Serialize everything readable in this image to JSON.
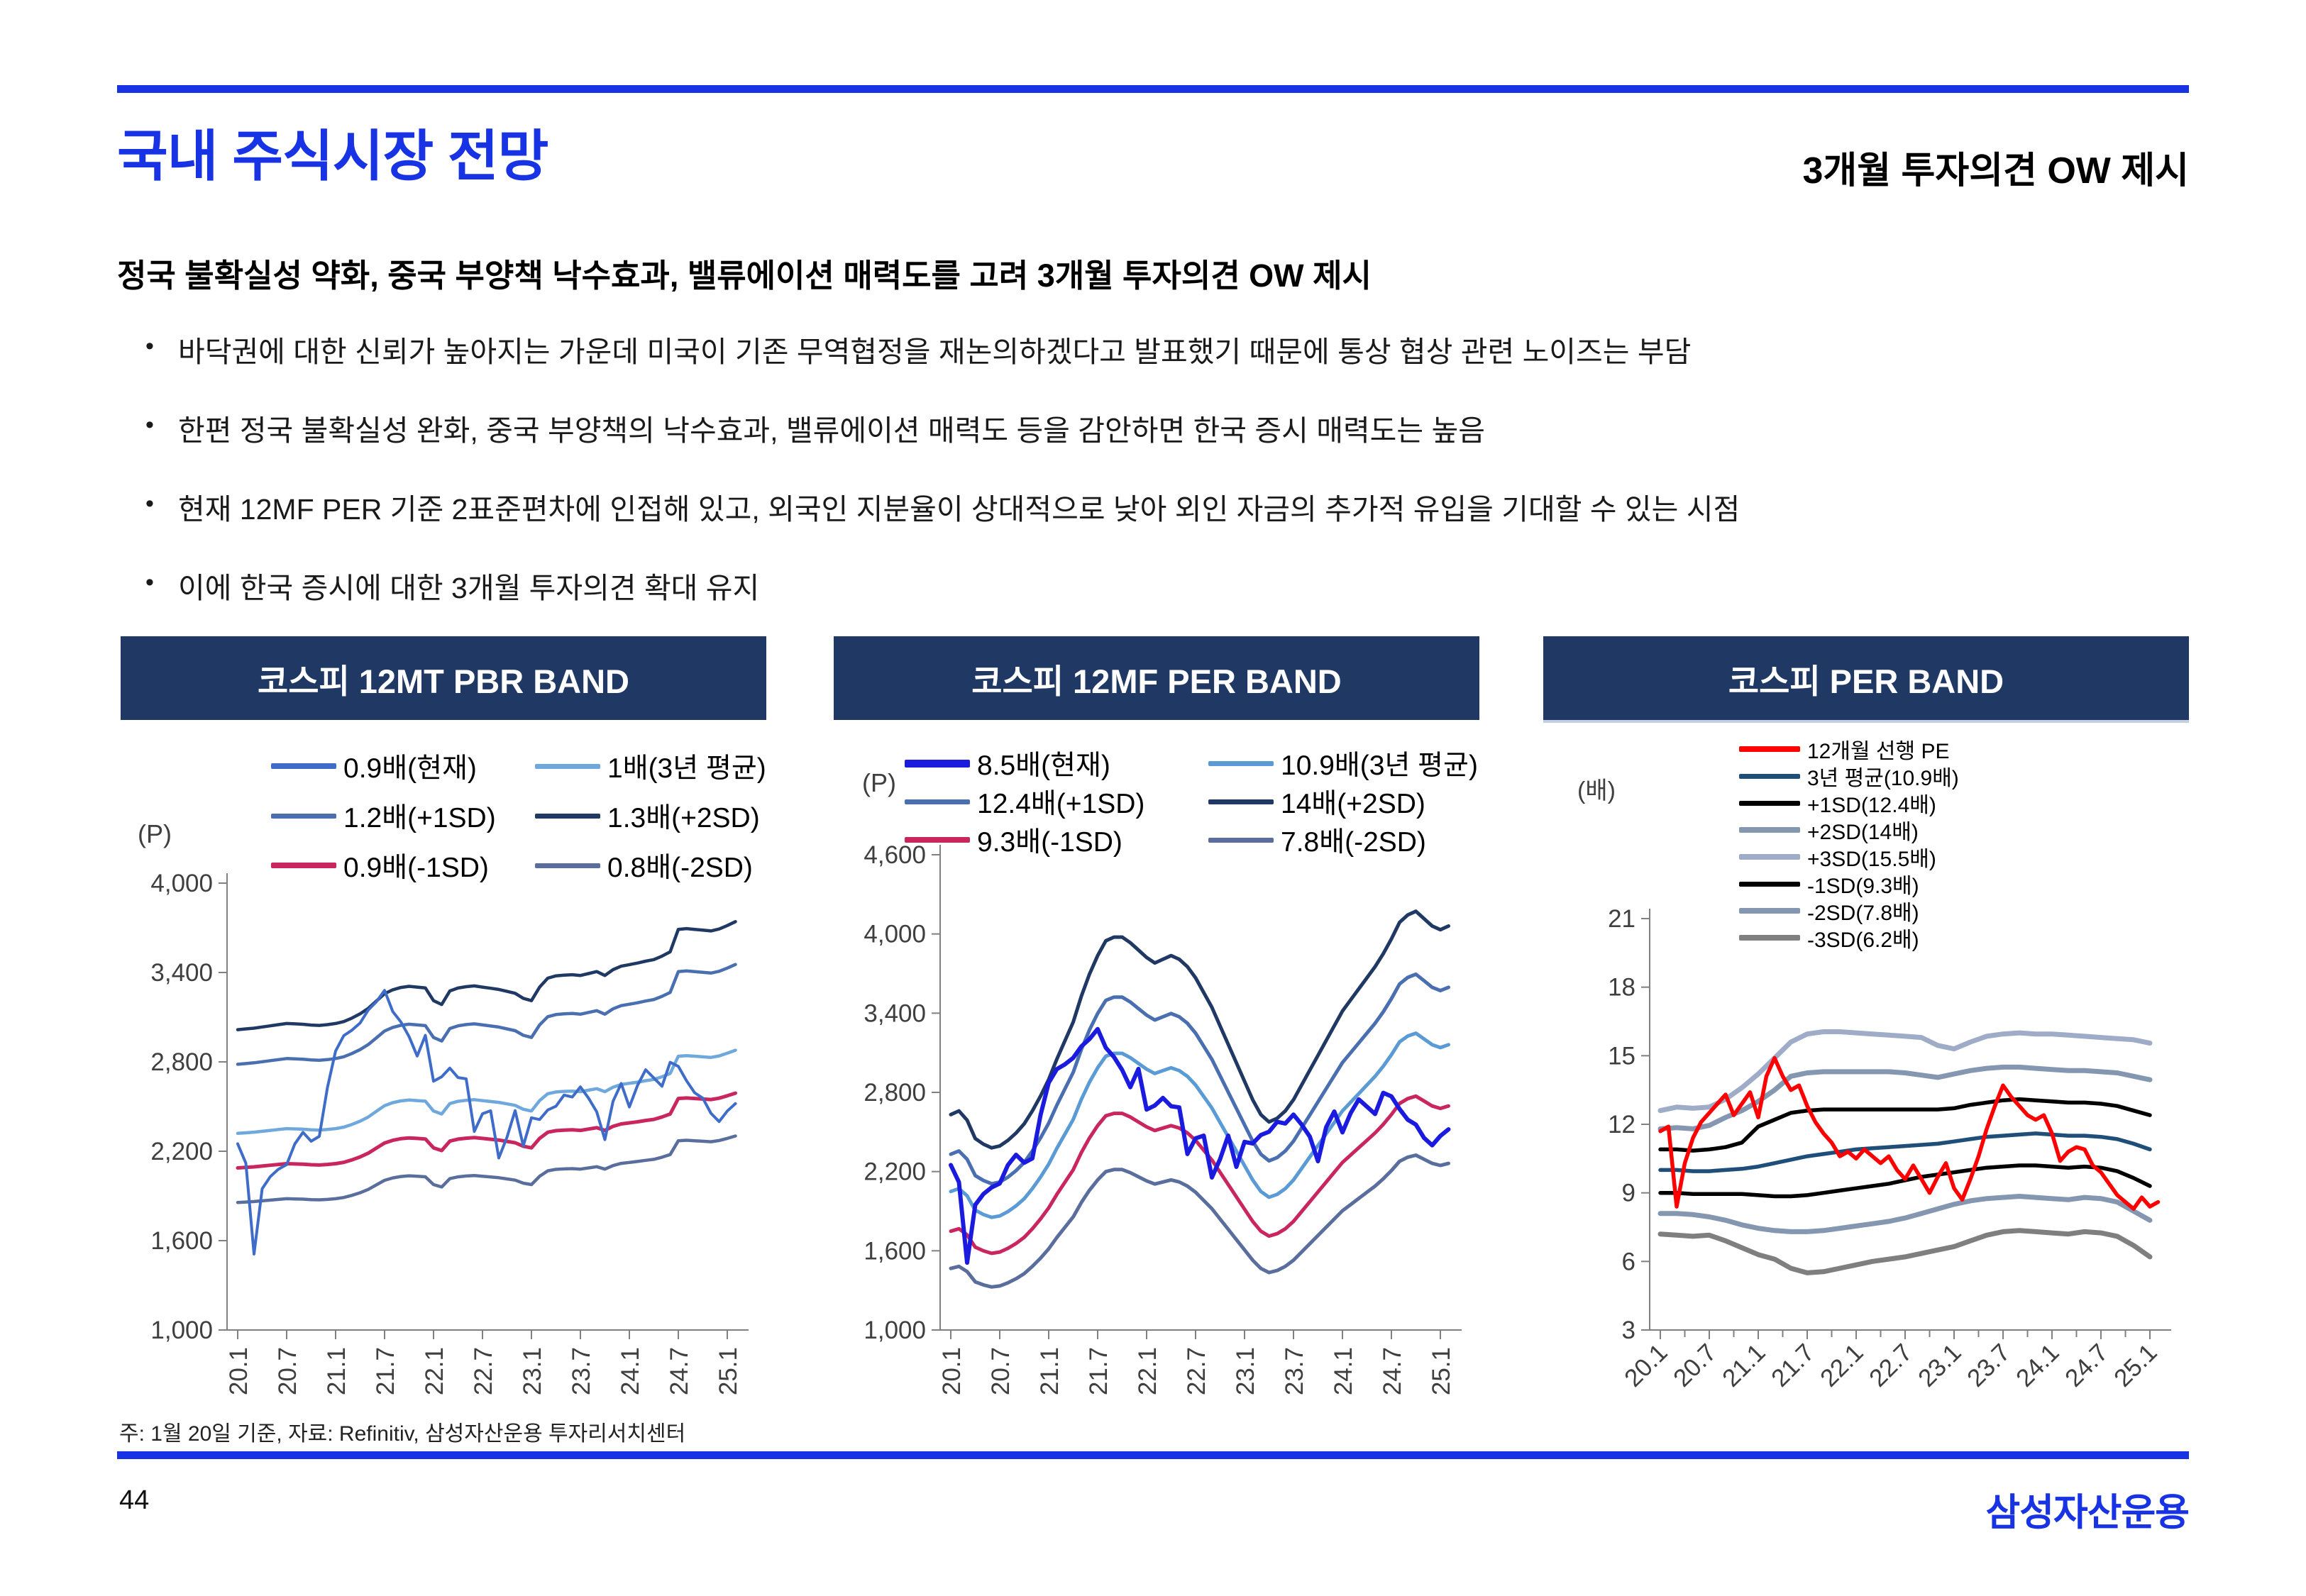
{
  "brand_color": "#1733E3",
  "header_bar_color": "#1F3864",
  "page": {
    "title": "국내 주식시장 전망",
    "header_right": "3개월 투자의견 OW 제시",
    "subtitle": "정국 불확실성 약화, 중국 부양책 낙수효과, 밸류에이션 매력도를 고려 3개월 투자의견 OW 제시",
    "bullet_marker": "•",
    "bullets": [
      "바닥권에 대한 신뢰가 높아지는 가운데 미국이 기존 무역협정을 재논의하겠다고 발표했기 때문에 통상 협상 관련 노이즈는 부담",
      "한편 정국 불확실성 완화, 중국 부양책의 낙수효과, 밸류에이션 매력도 등을 감안하면 한국 증시 매력도는 높음",
      "현재 12MF PER 기준 2표준편차에 인접해 있고, 외국인 지분율이 상대적으로 낮아 외인 자금의 추가적 유입을 기대할 수 있는 시점",
      "이에 한국 증시에 대한 3개월 투자의견 확대 유지"
    ],
    "footnote": "주: 1월 20일 기준, 자료: Refinitiv, 삼성자산운용 투자리서치센터",
    "page_number": "44",
    "logo": "삼성자산운용"
  },
  "chart_data": [
    {
      "type": "line",
      "title": "코스피 12MT PBR BAND",
      "unit": "(P)",
      "plot_top": 230,
      "ylim": [
        1000,
        4000
      ],
      "yticks": [
        4000,
        3400,
        2800,
        2200,
        1600,
        1000
      ],
      "ytick_labels": [
        "4,000",
        "3,400",
        "2,800",
        "2,200",
        "1,600",
        "1,000"
      ],
      "xtick_labels": [
        "20.1",
        "20.7",
        "21.1",
        "21.7",
        "22.1",
        "22.7",
        "23.1",
        "23.7",
        "24.1",
        "24.7",
        "25.1"
      ],
      "x_label_angle": -90,
      "legend": [
        {
          "label": "0.9배(현재)",
          "color": "#3E6CC8",
          "thick": 8
        },
        {
          "label": "1배(3년 평균)",
          "color": "#6FA8DC",
          "thick": 7
        },
        {
          "label": "1.2배(+1SD)",
          "color": "#4A6FB0",
          "thick": 7
        },
        {
          "label": "1.3배(+2SD)",
          "color": "#1F3864",
          "thick": 7
        },
        {
          "label": "0.9배(-1SD)",
          "color": "#C9255E",
          "thick": 8
        },
        {
          "label": "0.8배(-2SD)",
          "color": "#5A6E9E",
          "thick": 7
        }
      ],
      "base": [
        2320,
        2324,
        2328,
        2334,
        2340,
        2346,
        2352,
        2350,
        2348,
        2344,
        2342,
        2346,
        2352,
        2362,
        2380,
        2402,
        2430,
        2468,
        2506,
        2526,
        2538,
        2544,
        2540,
        2536,
        2470,
        2450,
        2520,
        2535,
        2542,
        2546,
        2540,
        2534,
        2528,
        2518,
        2508,
        2482,
        2470,
        2540,
        2586,
        2598,
        2602,
        2604,
        2600,
        2610,
        2620,
        2600,
        2630,
        2648,
        2656,
        2664,
        2674,
        2682,
        2700,
        2722,
        2838,
        2842,
        2838,
        2834,
        2830,
        2840,
        2858,
        2878
      ],
      "series": [
        {
          "name": "1.3배(+2SD)",
          "color": "#1F3864",
          "w": 4.5,
          "mult": 1.3
        },
        {
          "name": "1.2배(+1SD)",
          "color": "#4A6FB0",
          "w": 4.5,
          "mult": 1.2
        },
        {
          "name": "1배(3년 평균)",
          "color": "#6FA8DC",
          "w": 4.5,
          "mult": 1.0
        },
        {
          "name": "0.8배(-2SD)",
          "color": "#5A6E9E",
          "w": 4.5,
          "mult": 0.8
        },
        {
          "name": "0.9배(-1SD)",
          "color": "#C9255E",
          "w": 5,
          "mult": 0.9
        },
        {
          "name": "0.9배(현재)",
          "color": "#3E6CC8",
          "w": 4,
          "values": [
            2250,
            2120,
            1510,
            1948,
            2030,
            2080,
            2110,
            2249,
            2327,
            2267,
            2300,
            2628,
            2873,
            2976,
            3013,
            3061,
            3148,
            3204,
            3280,
            3138,
            3068,
            2970,
            2839,
            2978,
            2670,
            2700,
            2758,
            2695,
            2686,
            2333,
            2452,
            2472,
            2155,
            2294,
            2473,
            2236,
            2425,
            2413,
            2477,
            2502,
            2577,
            2564,
            2632,
            2556,
            2465,
            2278,
            2535,
            2655,
            2497,
            2642,
            2747,
            2692,
            2636,
            2797,
            2770,
            2674,
            2593,
            2556,
            2455,
            2399,
            2470,
            2520
          ]
        }
      ]
    },
    {
      "type": "line",
      "title": "코스피 12MF PER BAND",
      "unit": "(P)",
      "plot_top": 190,
      "ylim": [
        1000,
        4600
      ],
      "yticks": [
        4600,
        4000,
        3400,
        2800,
        2200,
        1600,
        1000
      ],
      "ytick_labels": [
        "4,600",
        "4,000",
        "3,400",
        "2,800",
        "2,200",
        "1,600",
        "1,000"
      ],
      "xtick_labels": [
        "20.1",
        "20.7",
        "21.1",
        "21.7",
        "22.1",
        "22.7",
        "23.1",
        "23.7",
        "24.1",
        "24.7",
        "25.1"
      ],
      "x_label_angle": -90,
      "legend": [
        {
          "label": "8.5배(현재)",
          "color": "#1B1BE0",
          "thick": 11
        },
        {
          "label": "10.9배(3년 평균)",
          "color": "#5B9BD5",
          "thick": 7
        },
        {
          "label": "12.4배(+1SD)",
          "color": "#4A6FB0",
          "thick": 7
        },
        {
          "label": "14배(+2SD)",
          "color": "#1F3864",
          "thick": 7
        },
        {
          "label": "9.3배(-1SD)",
          "color": "#C9255E",
          "thick": 8
        },
        {
          "label": "7.8배(-2SD)",
          "color": "#5A6E9E",
          "thick": 7
        }
      ],
      "base": [
        188,
        190,
        185,
        175,
        172,
        170,
        171,
        174,
        178,
        183,
        190,
        198,
        207,
        218,
        228,
        238,
        252,
        264,
        274,
        282,
        284,
        284,
        281,
        277,
        273,
        270,
        272,
        274,
        272,
        268,
        262,
        254,
        246,
        236,
        226,
        216,
        206,
        196,
        188,
        184,
        186,
        190,
        196,
        204,
        212,
        220,
        228,
        236,
        244,
        250,
        256,
        262,
        268,
        275,
        283,
        292,
        296,
        298,
        294,
        290,
        288,
        290
      ],
      "series": [
        {
          "name": "14배(+2SD)",
          "color": "#1F3864",
          "w": 5,
          "mult": 14
        },
        {
          "name": "12.4배(+1SD)",
          "color": "#4A6FB0",
          "w": 5,
          "mult": 12.4
        },
        {
          "name": "10.9배(3년 평균)",
          "color": "#5B9BD5",
          "w": 5,
          "mult": 10.9
        },
        {
          "name": "7.8배(-2SD)",
          "color": "#5A6E9E",
          "w": 5,
          "mult": 7.8
        },
        {
          "name": "9.3배(-1SD)",
          "color": "#C9255E",
          "w": 5,
          "mult": 9.3
        },
        {
          "name": "8.5배(현재)",
          "color": "#1B1BE0",
          "w": 6,
          "values": [
            2250,
            2120,
            1510,
            1948,
            2030,
            2080,
            2110,
            2249,
            2327,
            2267,
            2300,
            2628,
            2873,
            2976,
            3013,
            3061,
            3148,
            3204,
            3280,
            3138,
            3068,
            2970,
            2839,
            2978,
            2670,
            2700,
            2758,
            2695,
            2686,
            2333,
            2452,
            2472,
            2155,
            2294,
            2473,
            2236,
            2425,
            2413,
            2477,
            2502,
            2577,
            2564,
            2632,
            2556,
            2465,
            2278,
            2535,
            2655,
            2497,
            2642,
            2747,
            2692,
            2636,
            2797,
            2770,
            2674,
            2593,
            2556,
            2455,
            2399,
            2470,
            2520
          ]
        }
      ]
    },
    {
      "type": "line",
      "title": "코스피 PER BAND",
      "unit": "(배)",
      "plot_top": 280,
      "ylim": [
        3,
        21
      ],
      "yticks": [
        21,
        18,
        15,
        12,
        9,
        6,
        3
      ],
      "ytick_labels": [
        "21",
        "18",
        "15",
        "12",
        "9",
        "6",
        "3"
      ],
      "xtick_labels": [
        "20.1",
        "20.7",
        "21.1",
        "21.7",
        "22.1",
        "22.7",
        "23.1",
        "23.7",
        "24.1",
        "24.7",
        "25.1"
      ],
      "x_label_angle": -45,
      "minor_tick_step": 3,
      "legend": [
        {
          "label": "12개월 선행 PE",
          "color": "#FF0000",
          "thick": 8
        },
        {
          "label": "3년 평균(10.9배)",
          "color": "#1F4E79",
          "thick": 7
        },
        {
          "label": "+1SD(12.4배)",
          "color": "#000000",
          "thick": 7
        },
        {
          "label": "+2SD(14배)",
          "color": "#8496B0",
          "thick": 8
        },
        {
          "label": "+3SD(15.5배)",
          "color": "#9FACC8",
          "thick": 8
        },
        {
          "label": "-1SD(9.3배)",
          "color": "#000000",
          "thick": 7
        },
        {
          "label": "-2SD(7.8배)",
          "color": "#8496B0",
          "thick": 8
        },
        {
          "label": "-3SD(6.2배)",
          "color": "#7F7F7F",
          "thick": 8
        }
      ],
      "series": [
        {
          "name": "+3SD(15.5배)",
          "color": "#9FACC8",
          "w": 7,
          "step": 2,
          "values": [
            12.6,
            12.75,
            12.7,
            12.75,
            13.1,
            13.6,
            14.2,
            14.9,
            15.6,
            15.95,
            16.05,
            16.05,
            16.0,
            15.95,
            15.9,
            15.85,
            15.8,
            15.45,
            15.3,
            15.6,
            15.85,
            15.95,
            16.0,
            15.95,
            15.95,
            15.9,
            15.85,
            15.8,
            15.75,
            15.7,
            15.55
          ]
        },
        {
          "name": "+2SD(14배)",
          "color": "#8496B0",
          "w": 7,
          "step": 2,
          "values": [
            11.8,
            11.85,
            11.8,
            11.95,
            12.3,
            12.6,
            13.0,
            13.5,
            14.1,
            14.25,
            14.3,
            14.3,
            14.3,
            14.3,
            14.3,
            14.25,
            14.15,
            14.05,
            14.2,
            14.35,
            14.45,
            14.5,
            14.5,
            14.45,
            14.4,
            14.35,
            14.35,
            14.3,
            14.25,
            14.1,
            13.95
          ]
        },
        {
          "name": "-2SD(7.8배)",
          "color": "#8496B0",
          "w": 7,
          "step": 2,
          "values": [
            8.1,
            8.1,
            8.05,
            7.95,
            7.8,
            7.6,
            7.45,
            7.35,
            7.3,
            7.3,
            7.35,
            7.45,
            7.55,
            7.65,
            7.75,
            7.9,
            8.1,
            8.3,
            8.5,
            8.65,
            8.75,
            8.8,
            8.85,
            8.8,
            8.75,
            8.7,
            8.8,
            8.75,
            8.6,
            8.2,
            7.8
          ]
        },
        {
          "name": "-3SD(6.2배)",
          "color": "#7F7F7F",
          "w": 7,
          "step": 2,
          "values": [
            7.2,
            7.15,
            7.1,
            7.15,
            6.9,
            6.6,
            6.3,
            6.1,
            5.7,
            5.5,
            5.55,
            5.7,
            5.85,
            6.0,
            6.1,
            6.2,
            6.35,
            6.5,
            6.65,
            6.9,
            7.15,
            7.3,
            7.35,
            7.3,
            7.25,
            7.2,
            7.3,
            7.25,
            7.1,
            6.7,
            6.2
          ]
        },
        {
          "name": "3년 평균(10.9배)",
          "color": "#1F4E79",
          "w": 5.5,
          "step": 2,
          "values": [
            10.0,
            10.0,
            9.95,
            9.95,
            10.0,
            10.05,
            10.15,
            10.3,
            10.45,
            10.6,
            10.7,
            10.8,
            10.9,
            10.95,
            11.0,
            11.05,
            11.1,
            11.15,
            11.25,
            11.35,
            11.45,
            11.5,
            11.55,
            11.6,
            11.55,
            11.5,
            11.5,
            11.45,
            11.35,
            11.15,
            10.9
          ]
        },
        {
          "name": "+1SD(12.4배)",
          "color": "#000000",
          "w": 5.5,
          "step": 2,
          "values": [
            10.9,
            10.9,
            10.85,
            10.9,
            11.0,
            11.2,
            11.9,
            12.2,
            12.5,
            12.6,
            12.65,
            12.65,
            12.65,
            12.65,
            12.65,
            12.65,
            12.65,
            12.65,
            12.7,
            12.85,
            12.95,
            13.05,
            13.1,
            13.05,
            13.0,
            12.95,
            12.95,
            12.9,
            12.8,
            12.6,
            12.4
          ]
        },
        {
          "name": "-1SD(9.3배)",
          "color": "#000000",
          "w": 5.5,
          "step": 2,
          "values": [
            9.0,
            9.0,
            8.95,
            8.95,
            8.95,
            8.95,
            8.9,
            8.85,
            8.85,
            8.9,
            9.0,
            9.1,
            9.2,
            9.3,
            9.4,
            9.55,
            9.7,
            9.8,
            9.9,
            10.0,
            10.1,
            10.15,
            10.2,
            10.2,
            10.15,
            10.1,
            10.15,
            10.1,
            9.95,
            9.65,
            9.3
          ]
        },
        {
          "name": "12개월 선행 PE",
          "color": "#FF0000",
          "w": 5.5,
          "step": 1,
          "values": [
            11.7,
            11.9,
            8.4,
            10.3,
            11.4,
            12.1,
            12.5,
            12.9,
            13.3,
            12.4,
            12.9,
            13.4,
            12.3,
            14.1,
            14.9,
            14.1,
            13.5,
            13.7,
            12.8,
            12.1,
            11.6,
            11.2,
            10.6,
            10.8,
            10.5,
            10.9,
            10.6,
            10.3,
            10.6,
            10.0,
            9.6,
            10.2,
            9.6,
            9.0,
            9.7,
            10.3,
            9.2,
            8.7,
            9.6,
            10.6,
            11.8,
            12.8,
            13.7,
            13.2,
            12.8,
            12.4,
            12.2,
            12.4,
            11.6,
            10.4,
            10.8,
            11.0,
            10.9,
            10.2,
            9.9,
            9.4,
            8.9,
            8.6,
            8.3,
            8.8,
            8.4,
            8.6
          ]
        }
      ]
    }
  ]
}
